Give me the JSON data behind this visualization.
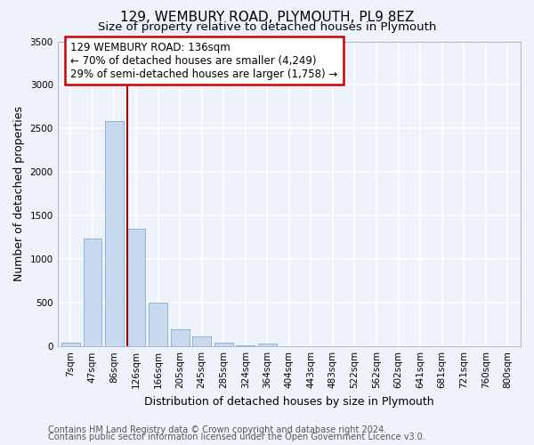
{
  "title": "129, WEMBURY ROAD, PLYMOUTH, PL9 8EZ",
  "subtitle": "Size of property relative to detached houses in Plymouth",
  "xlabel": "Distribution of detached houses by size in Plymouth",
  "ylabel": "Number of detached properties",
  "categories": [
    "7sqm",
    "47sqm",
    "86sqm",
    "126sqm",
    "166sqm",
    "205sqm",
    "245sqm",
    "285sqm",
    "324sqm",
    "364sqm",
    "404sqm",
    "443sqm",
    "483sqm",
    "522sqm",
    "562sqm",
    "602sqm",
    "641sqm",
    "681sqm",
    "721sqm",
    "760sqm",
    "800sqm"
  ],
  "values": [
    40,
    1240,
    2590,
    1350,
    500,
    200,
    110,
    40,
    8,
    35,
    5,
    5,
    3,
    2,
    2,
    0,
    0,
    0,
    0,
    0,
    0
  ],
  "bar_color": "#c8d8ee",
  "bar_edge_color": "#7aadd4",
  "vline_color": "#990000",
  "annotation_text": "129 WEMBURY ROAD: 136sqm\n← 70% of detached houses are smaller (4,249)\n29% of semi-detached houses are larger (1,758) →",
  "annotation_box_color": "#cc0000",
  "annotation_text_color": "#000000",
  "ylim": [
    0,
    3500
  ],
  "yticks": [
    0,
    500,
    1000,
    1500,
    2000,
    2500,
    3000,
    3500
  ],
  "bg_color": "#eef3fb",
  "plot_bg_color": "#eef3fb",
  "grid_color": "#ffffff",
  "footer_line1": "Contains HM Land Registry data © Crown copyright and database right 2024.",
  "footer_line2": "Contains public sector information licensed under the Open Government Licence v3.0.",
  "title_fontsize": 11,
  "subtitle_fontsize": 9.5,
  "axis_label_fontsize": 9,
  "tick_fontsize": 7.5,
  "footer_fontsize": 7,
  "annotation_fontsize": 8.5
}
